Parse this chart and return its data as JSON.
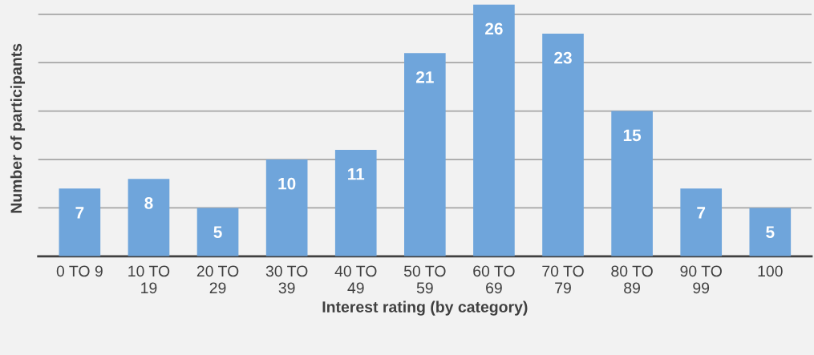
{
  "chart_data": {
    "type": "bar",
    "xlabel": "Interest rating (by category)",
    "ylabel": "Number of participants",
    "categories": [
      "0 TO 9",
      "10 TO\n19",
      "20 TO\n29",
      "30 TO\n39",
      "40 TO\n49",
      "50 TO\n59",
      "60 TO\n69",
      "70 TO\n79",
      "80 TO\n89",
      "90 TO\n99",
      "100"
    ],
    "values": [
      7,
      8,
      5,
      10,
      11,
      21,
      26,
      23,
      15,
      7,
      5
    ],
    "color": "#6fa5db",
    "data_labels": true,
    "grid": "y",
    "tick_labels": "x",
    "ylim": [
      0,
      26.4
    ],
    "yticks": [
      {
        "value": 0,
        "label": null
      },
      {
        "value": 5,
        "label": null
      },
      {
        "value": 10,
        "label": null
      },
      {
        "value": 15,
        "label": null
      },
      {
        "value": 20,
        "label": null
      },
      {
        "value": 25,
        "label": null
      }
    ]
  }
}
